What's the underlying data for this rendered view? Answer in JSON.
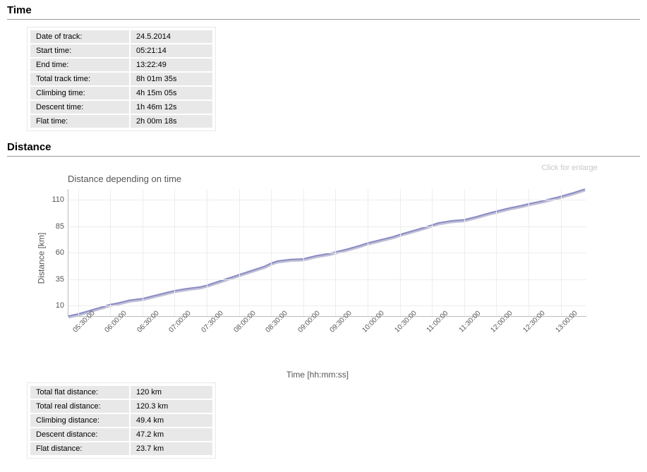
{
  "time_section": {
    "heading": "Time",
    "rows": [
      {
        "label": "Date of track:",
        "value": "24.5.2014"
      },
      {
        "label": "Start time:",
        "value": "05:21:14"
      },
      {
        "label": "End time:",
        "value": "13:22:49"
      },
      {
        "label": "Total track time:",
        "value": "8h 01m 35s"
      },
      {
        "label": "Climbing time:",
        "value": "4h 15m 05s"
      },
      {
        "label": "Descent time:",
        "value": "1h 46m 12s"
      },
      {
        "label": "Flat time:",
        "value": "2h 00m 18s"
      }
    ]
  },
  "distance_section": {
    "heading": "Distance",
    "click_for_enlarge": "Click for enlarge",
    "rows": [
      {
        "label": "Total flat distance:",
        "value": "120 km"
      },
      {
        "label": "Total real distance:",
        "value": "120.3 km"
      },
      {
        "label": "Climbing distance:",
        "value": "49.4 km"
      },
      {
        "label": "Descent distance:",
        "value": "47.2 km"
      },
      {
        "label": "Flat distance:",
        "value": "23.7 km"
      }
    ]
  },
  "distance_chart": {
    "type": "line",
    "title": "Distance depending on time",
    "ylabel": "Distance [km]",
    "xlabel": "Time  [hh:mm:ss]",
    "line_color": "#8b8cc2",
    "line_shadow_color": "#c0c0d8",
    "line_width": 2,
    "background_color": "#ffffff",
    "grid_color": "#ededed",
    "axis_color": "#bbbbbb",
    "tick_fontsize": 11,
    "label_fontsize": 12,
    "title_fontsize": 13,
    "xlim_min": 5.35,
    "xlim_max": 13.4,
    "ylim_min": 0,
    "ylim_max": 120,
    "ytick_values": [
      10,
      35,
      60,
      85,
      110
    ],
    "ytick_labels": [
      "10",
      "35",
      "60",
      "85",
      "110"
    ],
    "xtick_values": [
      5.5,
      6.0,
      6.5,
      7.0,
      7.5,
      8.0,
      8.5,
      9.0,
      9.5,
      10.0,
      10.5,
      11.0,
      11.5,
      12.0,
      12.5,
      13.0
    ],
    "xtick_labels": [
      "05:30:00",
      "06:00:00",
      "06:30:00",
      "07:00:00",
      "07:30:00",
      "08:00:00",
      "08:30:00",
      "09:00:00",
      "09:30:00",
      "10:00:00",
      "10:30:00",
      "11:00:00",
      "11:30:00",
      "12:00:00",
      "12:30:00",
      "13:00:00"
    ],
    "points": [
      [
        5.35,
        0.0
      ],
      [
        5.5,
        2.0
      ],
      [
        5.7,
        5.5
      ],
      [
        5.9,
        9.0
      ],
      [
        6.0,
        11.0
      ],
      [
        6.1,
        12.0
      ],
      [
        6.3,
        15.0
      ],
      [
        6.5,
        16.5
      ],
      [
        6.7,
        19.5
      ],
      [
        6.9,
        22.5
      ],
      [
        7.0,
        24.0
      ],
      [
        7.2,
        26.0
      ],
      [
        7.4,
        27.5
      ],
      [
        7.5,
        29.0
      ],
      [
        7.7,
        33.0
      ],
      [
        7.9,
        37.0
      ],
      [
        8.0,
        39.0
      ],
      [
        8.2,
        43.0
      ],
      [
        8.4,
        47.0
      ],
      [
        8.5,
        50.0
      ],
      [
        8.6,
        52.0
      ],
      [
        8.8,
        53.5
      ],
      [
        9.0,
        54.0
      ],
      [
        9.2,
        57.0
      ],
      [
        9.4,
        59.0
      ],
      [
        9.5,
        60.5
      ],
      [
        9.7,
        63.5
      ],
      [
        9.9,
        67.0
      ],
      [
        10.0,
        69.0
      ],
      [
        10.2,
        72.0
      ],
      [
        10.4,
        75.0
      ],
      [
        10.5,
        77.0
      ],
      [
        10.7,
        80.5
      ],
      [
        10.9,
        84.0
      ],
      [
        11.0,
        86.0
      ],
      [
        11.1,
        88.0
      ],
      [
        11.3,
        90.0
      ],
      [
        11.5,
        91.0
      ],
      [
        11.7,
        94.0
      ],
      [
        11.9,
        97.5
      ],
      [
        12.0,
        99.0
      ],
      [
        12.2,
        102.0
      ],
      [
        12.4,
        104.5
      ],
      [
        12.5,
        106.0
      ],
      [
        12.7,
        108.5
      ],
      [
        12.9,
        111.5
      ],
      [
        13.0,
        113.0
      ],
      [
        13.2,
        116.5
      ],
      [
        13.38,
        120.0
      ]
    ]
  }
}
